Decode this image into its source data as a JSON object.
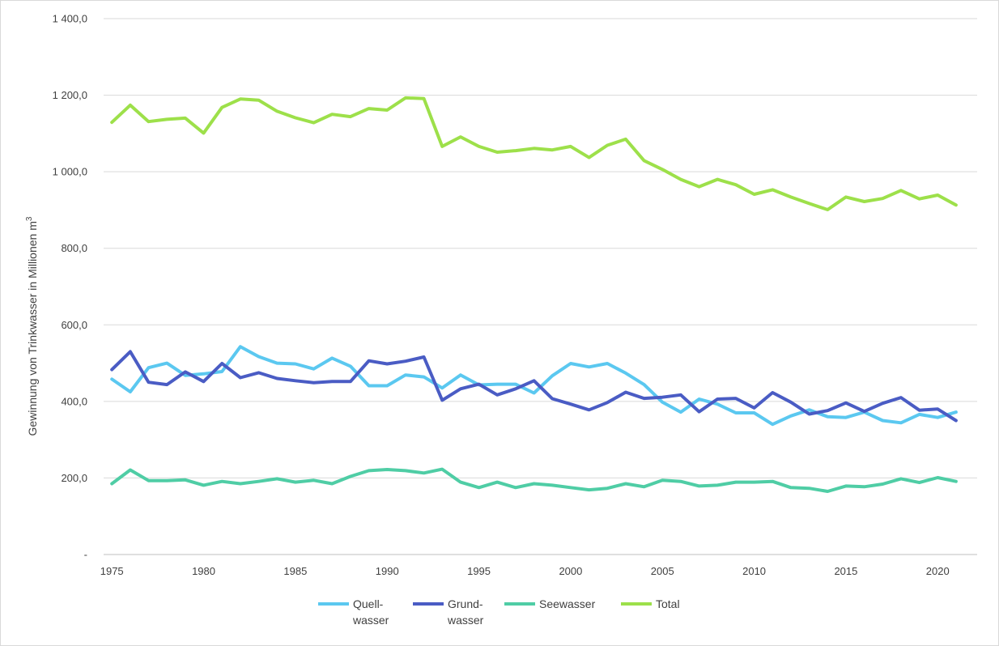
{
  "chart_data": {
    "type": "line",
    "ylabel": "Gewinnung von Trinkwasser in Millionen m",
    "ylabel_sup": "3",
    "ylim": [
      0,
      1400
    ],
    "yticks": [
      {
        "value": 0,
        "label": "-"
      },
      {
        "value": 200,
        "label": "200,0"
      },
      {
        "value": 400,
        "label": "400,0"
      },
      {
        "value": 600,
        "label": "600,0"
      },
      {
        "value": 800,
        "label": "800,0"
      },
      {
        "value": 1000,
        "label": "1 000,0"
      },
      {
        "value": 1200,
        "label": "1 200,0"
      },
      {
        "value": 1400,
        "label": "1 400,0"
      }
    ],
    "xticks": [
      1975,
      1980,
      1985,
      1990,
      1995,
      2000,
      2005,
      2010,
      2015,
      2020
    ],
    "grid": "horizontal",
    "legend": "bottom",
    "x": [
      1975,
      1976,
      1977,
      1978,
      1979,
      1980,
      1981,
      1982,
      1983,
      1984,
      1985,
      1986,
      1987,
      1988,
      1989,
      1990,
      1991,
      1992,
      1993,
      1994,
      1995,
      1996,
      1997,
      1998,
      1999,
      2000,
      2001,
      2002,
      2003,
      2004,
      2005,
      2006,
      2007,
      2008,
      2009,
      2010,
      2011,
      2012,
      2013,
      2014,
      2015,
      2016,
      2017,
      2018,
      2019,
      2020,
      2021
    ],
    "series": [
      {
        "name": [
          "Quell-",
          "wasser"
        ],
        "color": "#5bc8f0",
        "values": [
          458,
          425,
          488,
          500,
          468,
          472,
          478,
          543,
          517,
          500,
          498,
          485,
          513,
          492,
          441,
          441,
          469,
          464,
          435,
          469,
          443,
          445,
          445,
          422,
          467,
          499,
          490,
          499,
          474,
          444,
          398,
          372,
          406,
          393,
          370,
          370,
          340,
          362,
          378,
          360,
          358,
          372,
          350,
          344,
          366,
          358,
          372
        ]
      },
      {
        "name": [
          "Grund-",
          "wasser"
        ],
        "color": "#4a5cc4",
        "values": [
          483,
          530,
          450,
          444,
          477,
          452,
          499,
          462,
          475,
          460,
          454,
          449,
          452,
          452,
          506,
          498,
          505,
          516,
          403,
          433,
          445,
          417,
          433,
          454,
          407,
          393,
          378,
          397,
          424,
          408,
          411,
          417,
          373,
          406,
          408,
          383,
          423,
          398,
          367,
          376,
          396,
          374,
          395,
          410,
          377,
          380,
          350
        ]
      },
      {
        "name": [
          "Seewasser"
        ],
        "color": "#4fcda5",
        "values": [
          185,
          221,
          193,
          193,
          195,
          181,
          191,
          185,
          191,
          198,
          189,
          194,
          185,
          204,
          219,
          222,
          219,
          213,
          223,
          189,
          175,
          189,
          175,
          185,
          181,
          175,
          169,
          173,
          185,
          177,
          194,
          191,
          179,
          181,
          189,
          189,
          191,
          175,
          173,
          165,
          179,
          177,
          184,
          198,
          188,
          201,
          191
        ]
      },
      {
        "name": [
          "Total"
        ],
        "color": "#9de04a",
        "values": [
          1129,
          1174,
          1131,
          1137,
          1140,
          1101,
          1168,
          1190,
          1187,
          1158,
          1141,
          1128,
          1150,
          1144,
          1165,
          1161,
          1193,
          1191,
          1066,
          1091,
          1066,
          1051,
          1055,
          1061,
          1057,
          1066,
          1037,
          1069,
          1085,
          1029,
          1006,
          980,
          961,
          980,
          966,
          941,
          953,
          934,
          917,
          901,
          934,
          922,
          930,
          951,
          929,
          939,
          913
        ]
      }
    ]
  }
}
